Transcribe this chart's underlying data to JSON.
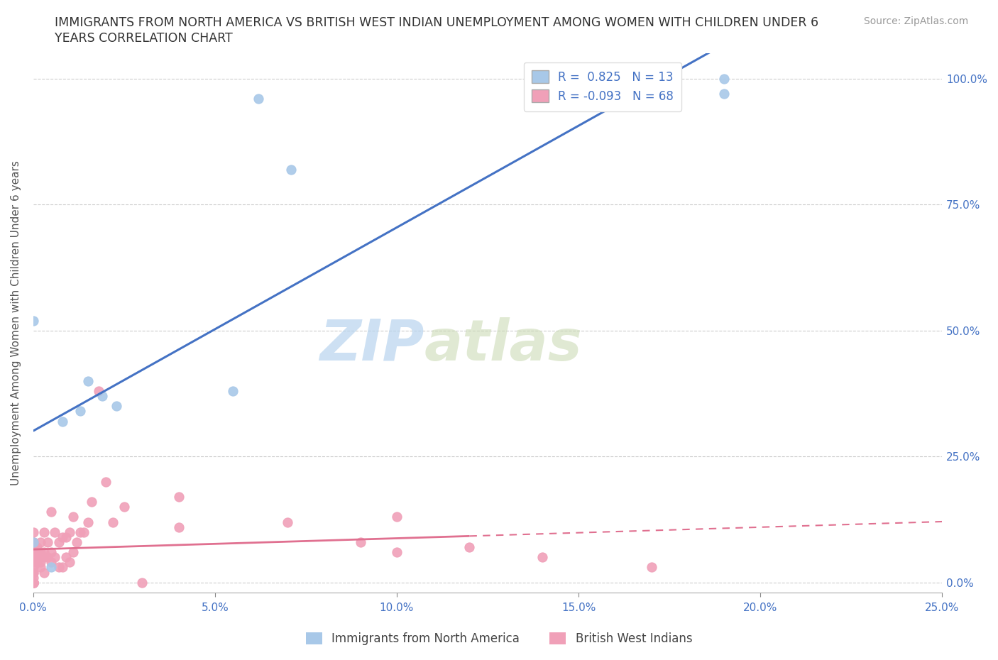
{
  "title_line1": "IMMIGRANTS FROM NORTH AMERICA VS BRITISH WEST INDIAN UNEMPLOYMENT AMONG WOMEN WITH CHILDREN UNDER 6",
  "title_line2": "YEARS CORRELATION CHART",
  "source_text": "Source: ZipAtlas.com",
  "ylabel": "Unemployment Among Women with Children Under 6 years",
  "xlim": [
    0.0,
    0.25
  ],
  "ylim": [
    -0.02,
    1.05
  ],
  "xticks": [
    0.0,
    0.05,
    0.1,
    0.15,
    0.2,
    0.25
  ],
  "xticklabels": [
    "0.0%",
    "5.0%",
    "10.0%",
    "15.0%",
    "20.0%",
    "25.0%"
  ],
  "yticks": [
    0.0,
    0.25,
    0.5,
    0.75,
    1.0
  ],
  "yticklabels_right": [
    "0.0%",
    "25.0%",
    "50.0%",
    "75.0%",
    "100.0%"
  ],
  "blue_color": "#a8c8e8",
  "pink_color": "#f0a0b8",
  "blue_line_color": "#4472c4",
  "pink_line_color": "#e07090",
  "tick_color": "#4472c4",
  "R_blue": 0.825,
  "N_blue": 13,
  "R_pink": -0.093,
  "N_pink": 68,
  "legend_label_blue": "Immigrants from North America",
  "legend_label_pink": "British West Indians",
  "watermark_zip": "ZIP",
  "watermark_atlas": "atlas",
  "blue_scatter_x": [
    0.062,
    0.071,
    0.0,
    0.015,
    0.019,
    0.023,
    0.013,
    0.008,
    0.0,
    0.19,
    0.19,
    0.055,
    0.005
  ],
  "blue_scatter_y": [
    0.96,
    0.82,
    0.52,
    0.4,
    0.37,
    0.35,
    0.34,
    0.32,
    0.08,
    1.0,
    0.97,
    0.38,
    0.03
  ],
  "pink_scatter_x": [
    0.0,
    0.0,
    0.0,
    0.0,
    0.0,
    0.0,
    0.0,
    0.0,
    0.0,
    0.0,
    0.0,
    0.0,
    0.0,
    0.0,
    0.0,
    0.0,
    0.0,
    0.0,
    0.0,
    0.0,
    0.001,
    0.001,
    0.001,
    0.001,
    0.002,
    0.002,
    0.002,
    0.002,
    0.003,
    0.003,
    0.003,
    0.003,
    0.004,
    0.004,
    0.005,
    0.005,
    0.005,
    0.006,
    0.006,
    0.007,
    0.007,
    0.008,
    0.008,
    0.009,
    0.009,
    0.01,
    0.01,
    0.011,
    0.011,
    0.012,
    0.013,
    0.014,
    0.015,
    0.016,
    0.018,
    0.02,
    0.022,
    0.025,
    0.03,
    0.04,
    0.04,
    0.07,
    0.09,
    0.1,
    0.1,
    0.12,
    0.14,
    0.17
  ],
  "pink_scatter_y": [
    0.0,
    0.0,
    0.0,
    0.0,
    0.0,
    0.0,
    0.0,
    0.0,
    0.01,
    0.02,
    0.02,
    0.03,
    0.04,
    0.05,
    0.06,
    0.06,
    0.07,
    0.08,
    0.08,
    0.1,
    0.04,
    0.05,
    0.06,
    0.07,
    0.03,
    0.04,
    0.06,
    0.08,
    0.02,
    0.05,
    0.06,
    0.1,
    0.05,
    0.08,
    0.04,
    0.06,
    0.14,
    0.05,
    0.1,
    0.03,
    0.08,
    0.03,
    0.09,
    0.05,
    0.09,
    0.04,
    0.1,
    0.06,
    0.13,
    0.08,
    0.1,
    0.1,
    0.12,
    0.16,
    0.38,
    0.2,
    0.12,
    0.15,
    0.0,
    0.17,
    0.11,
    0.12,
    0.08,
    0.06,
    0.13,
    0.07,
    0.05,
    0.03
  ],
  "background_color": "#ffffff",
  "grid_color": "#cccccc"
}
